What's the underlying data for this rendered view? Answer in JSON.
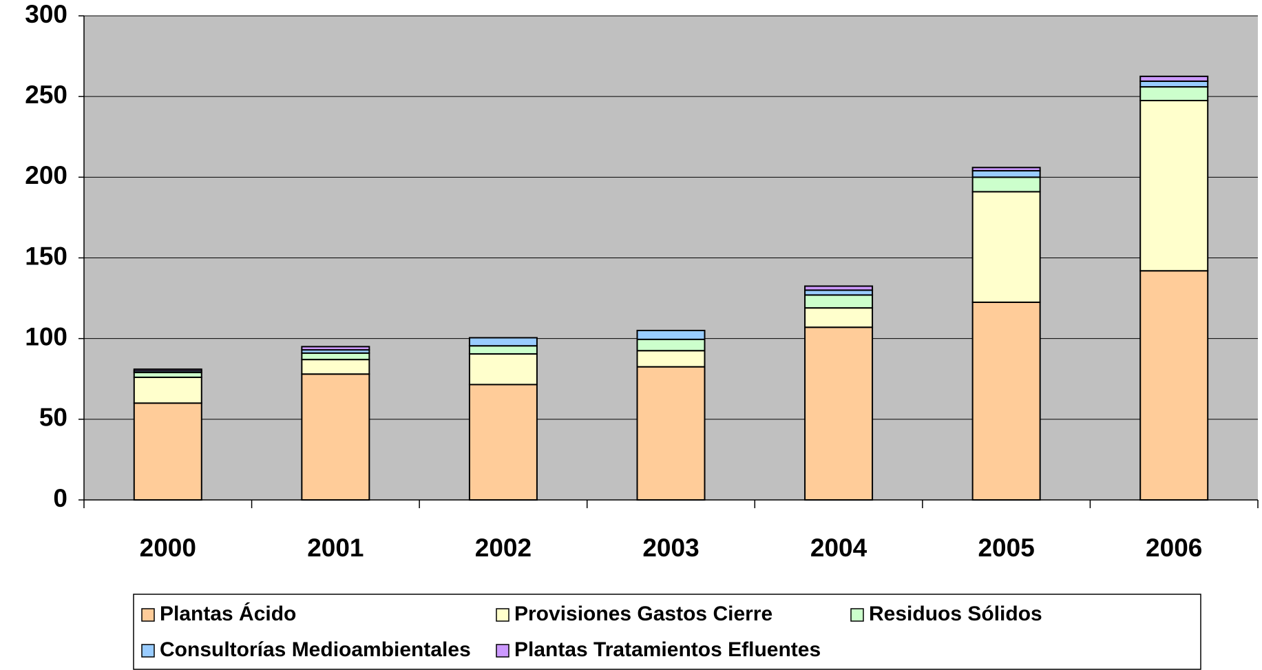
{
  "chart_data": {
    "type": "stacked_bar",
    "categories": [
      "2000",
      "2001",
      "2002",
      "2003",
      "2004",
      "2005",
      "2006"
    ],
    "series": [
      {
        "name": "Plantas Ácido",
        "color": "#FFCC99",
        "values": [
          60,
          78,
          71.5,
          82.5,
          107,
          122.5,
          142
        ]
      },
      {
        "name": "Provisiones Gastos Cierre",
        "color": "#FFFFCC",
        "values": [
          16,
          9,
          19,
          10,
          12,
          68.5,
          105.5
        ]
      },
      {
        "name": "Residuos Sólidos",
        "color": "#CCFFCC",
        "values": [
          3,
          4,
          5,
          7,
          8,
          9,
          8.5
        ]
      },
      {
        "name": "Consultorías Medioambientales",
        "color": "#99CCFF",
        "values": [
          1,
          2,
          5,
          5.5,
          3,
          4,
          3.5
        ]
      },
      {
        "name": "Plantas Tratamientos Efluentes",
        "color": "#CC99FF",
        "values": [
          1,
          2,
          0,
          0,
          2.5,
          2,
          3
        ]
      }
    ],
    "ylim": [
      0,
      300
    ],
    "yticks": [
      0,
      50,
      100,
      150,
      200,
      250,
      300
    ],
    "grid": true,
    "plot_background": "#C0C0C0",
    "legend": "bottom"
  }
}
